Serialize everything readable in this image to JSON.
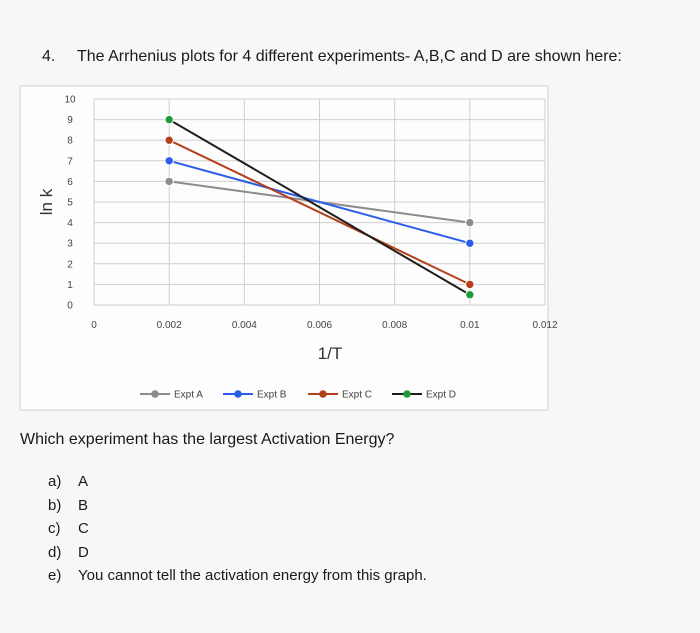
{
  "question": {
    "number": "4.",
    "text": "The Arrhenius plots for 4 different experiments- A,B,C and D are shown here:"
  },
  "chart_data": {
    "type": "line",
    "xlabel": "1/T",
    "ylabel": "ln k",
    "xlim": [
      0,
      0.012
    ],
    "ylim": [
      0,
      10
    ],
    "x_ticks": [
      "0",
      "0.002",
      "0.004",
      "0.006",
      "0.008",
      "0.01",
      "0.012"
    ],
    "y_ticks": [
      "0",
      "1",
      "2",
      "3",
      "4",
      "5",
      "6",
      "7",
      "8",
      "9",
      "10"
    ],
    "grid": true,
    "legend_position": "bottom",
    "series": [
      {
        "name": "Expt A",
        "color": "#8c8c8c",
        "x": [
          0.002,
          0.01
        ],
        "y": [
          6.0,
          4.0
        ]
      },
      {
        "name": "Expt B",
        "color": "#2a5ee8",
        "x": [
          0.002,
          0.01
        ],
        "y": [
          7.0,
          3.0
        ]
      },
      {
        "name": "Expt C",
        "color": "#b5401c",
        "x": [
          0.002,
          0.01
        ],
        "y": [
          8.0,
          1.0
        ]
      },
      {
        "name": "Expt D",
        "color": "#1e1e1e",
        "marker_color": "#1f9b3a",
        "x": [
          0.002,
          0.01
        ],
        "y": [
          9.0,
          0.5
        ]
      }
    ]
  },
  "prompt": "Which experiment has the largest Activation Energy?",
  "options": [
    {
      "letter": "a)",
      "text": "A"
    },
    {
      "letter": "b)",
      "text": "B"
    },
    {
      "letter": "c)",
      "text": "C"
    },
    {
      "letter": "d)",
      "text": "D"
    },
    {
      "letter": "e)",
      "text": "You cannot tell the activation energy from this graph."
    }
  ]
}
